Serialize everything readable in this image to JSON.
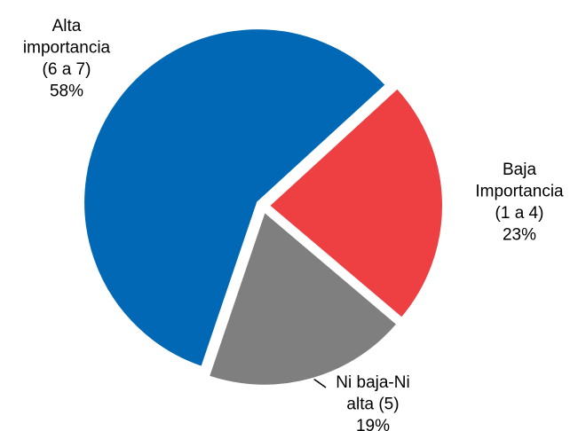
{
  "chart_data": {
    "type": "pie",
    "categories": [
      [
        "Alta",
        "importancia",
        "(6 a 7)"
      ],
      [
        "Baja",
        "Importancia",
        "(1 a 4)"
      ],
      [
        "Ni baja-Ni",
        "alta (5)"
      ]
    ],
    "values": [
      58,
      23,
      19
    ],
    "value_labels": [
      "58%",
      "23%",
      "19%"
    ],
    "colors": [
      "#0068b4",
      "#ee4043",
      "#7f7f7f"
    ]
  }
}
